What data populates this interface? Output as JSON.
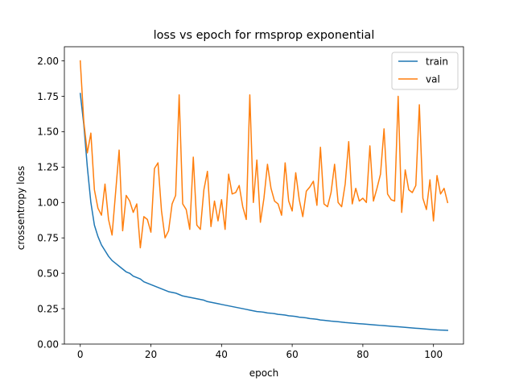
{
  "chart_data": {
    "type": "line",
    "title": "loss vs epoch for rmsprop exponential",
    "xlabel": "epoch",
    "ylabel": "crossentropy loss",
    "xlim": [
      -4.5,
      108.5
    ],
    "ylim": [
      0,
      2.1
    ],
    "xticks": [
      0,
      20,
      40,
      60,
      80,
      100
    ],
    "xtick_labels": [
      "0",
      "20",
      "40",
      "60",
      "80",
      "100"
    ],
    "yticks": [
      0,
      0.25,
      0.5,
      0.75,
      1.0,
      1.25,
      1.5,
      1.75,
      2.0
    ],
    "ytick_labels": [
      "0.00",
      "0.25",
      "0.50",
      "0.75",
      "1.00",
      "1.25",
      "1.50",
      "1.75",
      "2.00"
    ],
    "grid": false,
    "legend_position": "top-right",
    "series": [
      {
        "name": "train",
        "color": "#1f77b4",
        "values": [
          1.77,
          1.55,
          1.25,
          1.0,
          0.84,
          0.76,
          0.7,
          0.66,
          0.62,
          0.59,
          0.57,
          0.55,
          0.53,
          0.51,
          0.5,
          0.48,
          0.47,
          0.46,
          0.44,
          0.43,
          0.42,
          0.41,
          0.4,
          0.39,
          0.38,
          0.37,
          0.365,
          0.36,
          0.35,
          0.34,
          0.335,
          0.33,
          0.325,
          0.32,
          0.315,
          0.31,
          0.3,
          0.295,
          0.29,
          0.285,
          0.28,
          0.275,
          0.27,
          0.265,
          0.26,
          0.255,
          0.25,
          0.245,
          0.24,
          0.235,
          0.23,
          0.228,
          0.225,
          0.22,
          0.218,
          0.215,
          0.21,
          0.208,
          0.205,
          0.2,
          0.198,
          0.195,
          0.19,
          0.188,
          0.185,
          0.18,
          0.178,
          0.175,
          0.17,
          0.168,
          0.165,
          0.162,
          0.16,
          0.158,
          0.155,
          0.152,
          0.15,
          0.148,
          0.146,
          0.144,
          0.142,
          0.14,
          0.138,
          0.136,
          0.134,
          0.132,
          0.13,
          0.128,
          0.126,
          0.124,
          0.122,
          0.12,
          0.118,
          0.116,
          0.114,
          0.112,
          0.11,
          0.108,
          0.106,
          0.104,
          0.102,
          0.1,
          0.099,
          0.098,
          0.097
        ]
      },
      {
        "name": "val",
        "color": "#ff7f0e",
        "values": [
          2.0,
          1.57,
          1.35,
          1.49,
          1.09,
          0.96,
          0.91,
          1.13,
          0.88,
          0.77,
          1.07,
          1.37,
          0.8,
          1.05,
          1.01,
          0.93,
          0.99,
          0.68,
          0.9,
          0.88,
          0.79,
          1.24,
          1.28,
          0.94,
          0.75,
          0.8,
          0.99,
          1.05,
          1.76,
          0.99,
          0.95,
          0.81,
          1.32,
          0.84,
          0.81,
          1.09,
          1.22,
          0.83,
          1.01,
          0.87,
          1.02,
          0.81,
          1.2,
          1.06,
          1.07,
          1.12,
          0.97,
          0.88,
          1.76,
          1.0,
          1.3,
          0.86,
          1.03,
          1.27,
          1.1,
          1.01,
          0.99,
          0.91,
          1.28,
          1.01,
          0.94,
          1.21,
          1.02,
          0.9,
          1.08,
          1.11,
          1.15,
          0.98,
          1.39,
          0.99,
          0.97,
          1.07,
          1.27,
          1.0,
          0.97,
          1.13,
          1.43,
          0.99,
          1.1,
          1.01,
          1.03,
          1.0,
          1.4,
          1.01,
          1.1,
          1.2,
          1.52,
          1.06,
          1.02,
          1.01,
          1.75,
          0.93,
          1.23,
          1.09,
          1.07,
          1.12,
          1.69,
          1.03,
          0.95,
          1.16,
          0.87,
          1.19,
          1.06,
          1.1,
          1.0
        ]
      }
    ]
  }
}
